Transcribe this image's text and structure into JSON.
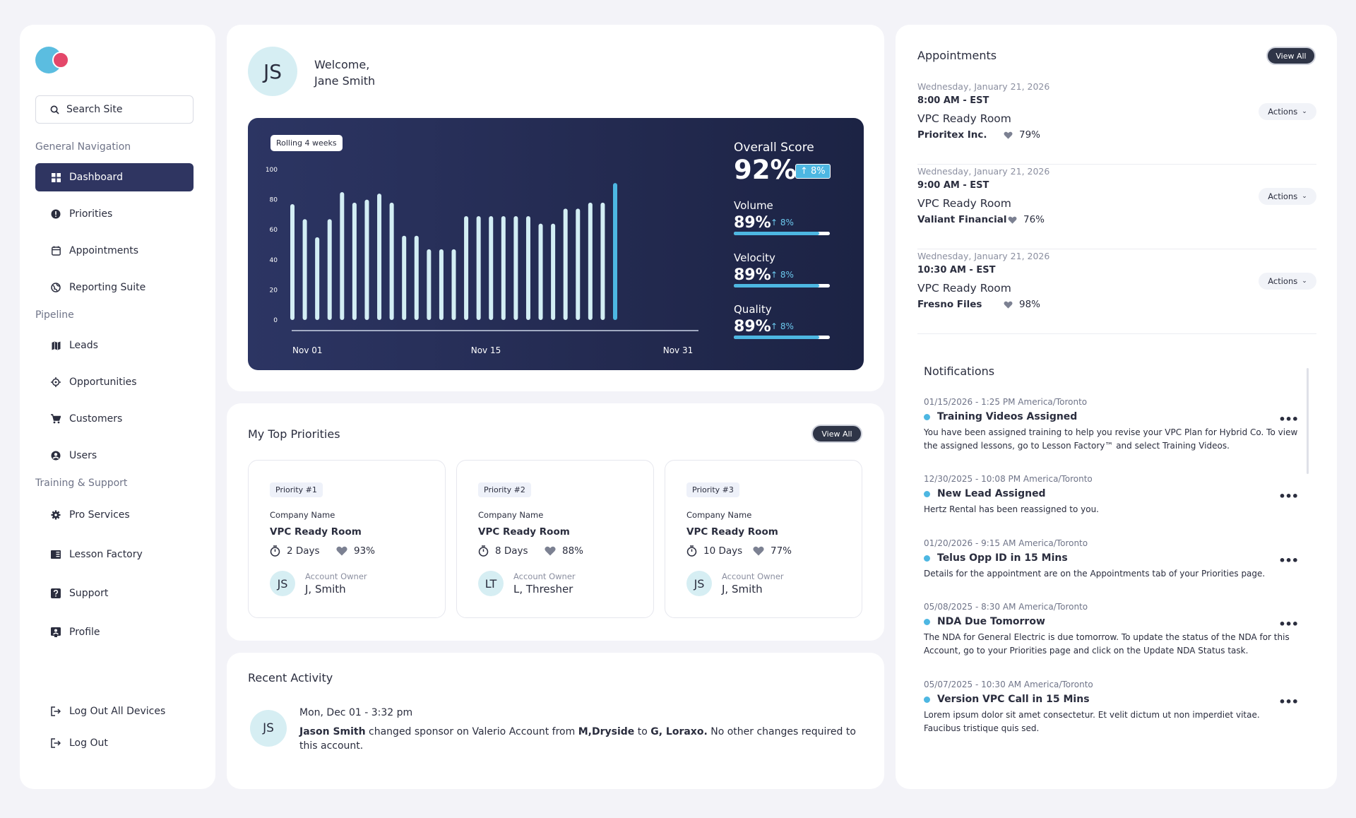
{
  "sidebar": {
    "search_placeholder": "Search Site",
    "sections": {
      "general": "General Navigation",
      "pipeline": "Pipeline",
      "training": "Training & Support"
    },
    "items": {
      "dashboard": "Dashboard",
      "priorities": "Priorities",
      "appointments": "Appointments",
      "reporting": "Reporting Suite",
      "leads": "Leads",
      "opportunities": "Opportunities",
      "customers": "Customers",
      "users": "Users",
      "pro_services": "Pro Services",
      "lesson_factory": "Lesson Factory",
      "support": "Support",
      "profile": "Profile",
      "logout_all": "Log Out All Devices",
      "logout": "Log Out"
    }
  },
  "welcome": {
    "initials": "JS",
    "greeting": "Welcome,",
    "name": "Jane Smith"
  },
  "scorecard": {
    "badge": "Rolling 4 weeks",
    "overall_label": "Overall Score",
    "overall_value": "92%",
    "overall_delta": "↑ 8%",
    "metrics": [
      {
        "label": "Volume",
        "value": "89%",
        "delta": "↑ 8%",
        "fill": 0.89
      },
      {
        "label": "Velocity",
        "value": "89%",
        "delta": "↑ 8%",
        "fill": 0.89
      },
      {
        "label": "Quality",
        "value": "89%",
        "delta": "↑ 8%",
        "fill": 0.89
      }
    ]
  },
  "chart_data": {
    "type": "bar",
    "x_ticks": [
      "Nov 01",
      "Nov 15",
      "Nov 31"
    ],
    "y_ticks": [
      "100",
      "80",
      "60",
      "40",
      "20",
      "0"
    ],
    "ylim": [
      0,
      100
    ],
    "values": [
      77,
      67,
      55,
      67,
      85,
      78,
      80,
      84,
      78,
      56,
      56,
      47,
      47,
      47,
      69,
      69,
      69,
      69,
      69,
      69,
      64,
      64,
      74,
      74,
      78,
      78,
      91
    ],
    "highlight_index": 26,
    "bar_color": "#d3eef4",
    "highlight_color": "#4db7e2"
  },
  "priorities": {
    "title": "My Top Priorities",
    "view_all": "View All",
    "items": [
      {
        "tag": "Priority #1",
        "company_label": "Company Name",
        "company": "VPC Ready Room",
        "days": "2 Days",
        "pct": "93%",
        "initials": "JS",
        "owner_label": "Account Owner",
        "owner": "J, Smith"
      },
      {
        "tag": "Priority #2",
        "company_label": "Company Name",
        "company": "VPC Ready Room",
        "days": "8 Days",
        "pct": "88%",
        "initials": "LT",
        "owner_label": "Account Owner",
        "owner": "L, Thresher"
      },
      {
        "tag": "Priority #3",
        "company_label": "Company Name",
        "company": "VPC Ready Room",
        "days": "10 Days",
        "pct": "77%",
        "initials": "JS",
        "owner_label": "Account Owner",
        "owner": "J, Smith"
      }
    ]
  },
  "activity": {
    "title": "Recent Activity",
    "initials": "JS",
    "time": "Mon, Dec 01 - 3:32 pm",
    "actor": "Jason Smith",
    "text1": " changed sponsor on Valerio Account from ",
    "from": "M,Dryside",
    "text2": " to ",
    "to": "G, Loraxo.",
    "text3": "  No other changes required to this account."
  },
  "appointments": {
    "title": "Appointments",
    "view_all": "View All",
    "items": [
      {
        "date": "Wednesday, January 21, 2026",
        "time": "8:00 AM - EST",
        "room": "VPC Ready Room",
        "company": "Prioritex Inc.",
        "pct": "79%",
        "actions": "Actions"
      },
      {
        "date": "Wednesday, January 21, 2026",
        "time": "9:00 AM - EST",
        "room": "VPC Ready Room",
        "company": "Valiant Financial",
        "pct": "76%",
        "actions": "Actions"
      },
      {
        "date": "Wednesday, January 21, 2026",
        "time": "10:30 AM - EST",
        "room": "VPC Ready Room",
        "company": "Fresno Files",
        "pct": "98%",
        "actions": "Actions"
      }
    ]
  },
  "notifications": {
    "title": "Notifications",
    "items": [
      {
        "date": "01/15/2026 - 1:25 PM America/Toronto",
        "title": "Training Videos Assigned",
        "body": "You have been assigned training to help you revise your VPC Plan for Hybrid Co. To view the assigned lessons, go to Lesson Factory™ and select Training Videos."
      },
      {
        "date": "12/30/2025 - 10:08 PM America/Toronto",
        "title": "New Lead Assigned",
        "body": "Hertz Rental has been reassigned to you."
      },
      {
        "date": "01/20/2026 - 9:15 AM America/Toronto",
        "title": "Telus Opp ID in 15 Mins",
        "body": "Details for the appointment are on the Appointments tab of your Priorities page."
      },
      {
        "date": "05/08/2025 - 8:30 AM America/Toronto",
        "title": "NDA Due Tomorrow",
        "body": "The NDA for General Electric is due tomorrow. To update the status of the NDA for this Account, go to your Priorities page and click on the Update NDA Status task."
      },
      {
        "date": "05/07/2025 - 10:30 AM America/Toronto",
        "title": "Version VPC Call in 15 Mins",
        "body": "Lorem ipsum dolor sit amet consectetur. Et velit dictum ut non imperdiet vitae. Faucibus tristique quis sed."
      }
    ],
    "more": "•••"
  },
  "colors": {
    "accent": "#4db7e2",
    "nav_active": "#2f3561",
    "chart_bg": "#252c55",
    "logo_blue": "#5bbde0",
    "logo_red": "#e4476a"
  }
}
